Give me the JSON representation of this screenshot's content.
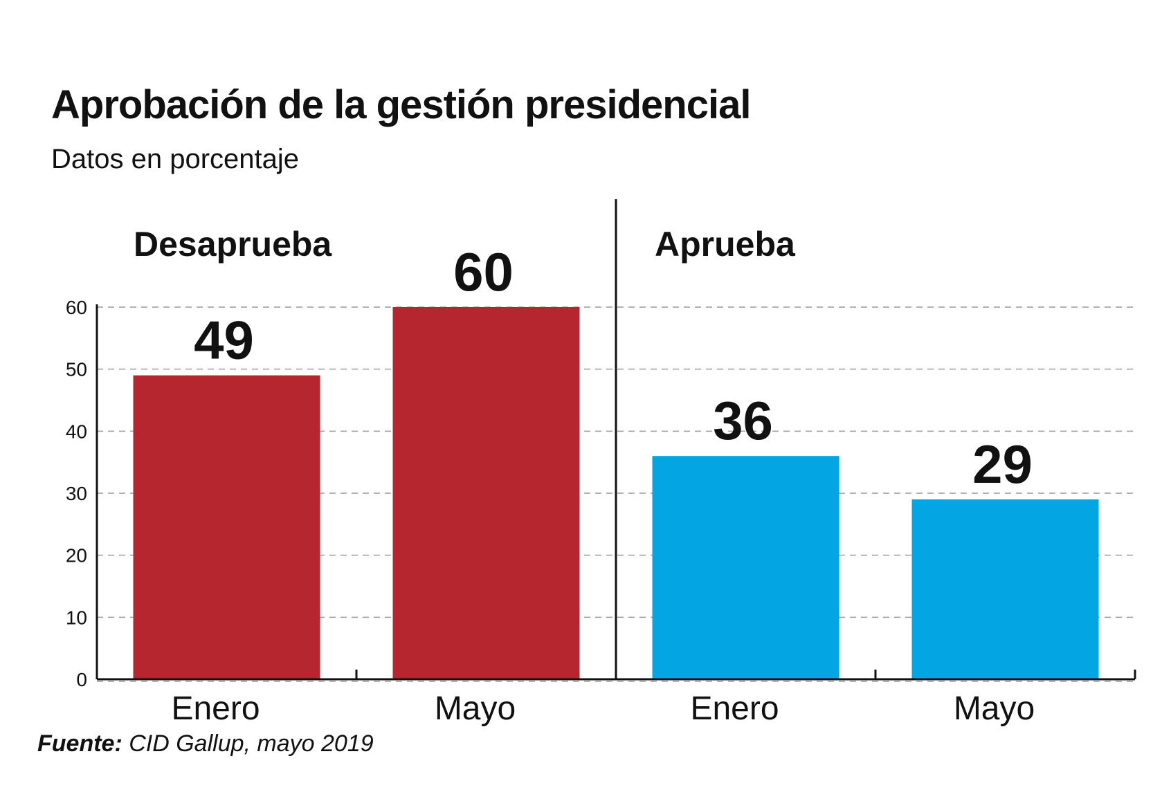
{
  "title": "Aprobación de la gestión presidencial",
  "subtitle": "Datos en porcentaje",
  "source": {
    "label": "Fuente:",
    "text": "CID Gallup, mayo 2019"
  },
  "colors": {
    "desaprueba": "#b5262f",
    "aprueba": "#03a5e3",
    "grid": "#9a9a9a",
    "axis": "#111111"
  },
  "chart_data": {
    "type": "bar",
    "ylim": [
      0,
      60
    ],
    "yticks": [
      0,
      10,
      20,
      30,
      40,
      50,
      60
    ],
    "grid": true,
    "groups": [
      {
        "name": "Desaprueba",
        "color": "#b5262f",
        "categories": [
          "Enero",
          "Mayo"
        ],
        "values": [
          49,
          60
        ]
      },
      {
        "name": "Aprueba",
        "color": "#03a5e3",
        "categories": [
          "Enero",
          "Mayo"
        ],
        "values": [
          36,
          29
        ]
      }
    ]
  }
}
